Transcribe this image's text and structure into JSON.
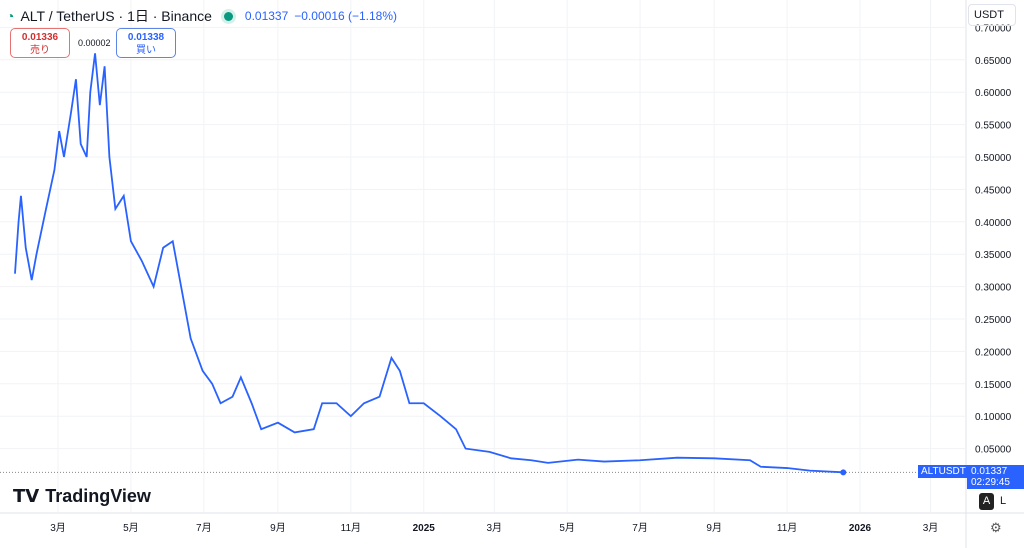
{
  "header": {
    "symbol": "ALT / TetherUS · 1日 · Binance",
    "price": "0.01337",
    "change": "−0.00016 (−1.18%)"
  },
  "trade": {
    "sell_price": "0.01336",
    "sell_label": "売り",
    "spread": "0.00002",
    "buy_price": "0.01338",
    "buy_label": "買い"
  },
  "currency": "USDT",
  "last_price": {
    "symbol": "ALTUSDT",
    "price": "0.01337",
    "countdown": "02:29:45"
  },
  "scale_buttons": {
    "auto": "A",
    "log": "L"
  },
  "logo": "TradingView",
  "colors": {
    "line": "#2962ff"
  },
  "chart_data": {
    "type": "line",
    "ylim": [
      0,
      0.72
    ],
    "xlim": [
      "2024-01-13",
      "2026-04-05"
    ],
    "yticks": [
      "0.05000",
      "0.10000",
      "0.15000",
      "0.20000",
      "0.25000",
      "0.30000",
      "0.35000",
      "0.40000",
      "0.45000",
      "0.50000",
      "0.55000",
      "0.60000",
      "0.65000",
      "0.70000"
    ],
    "xticks": [
      [
        "2024-03-01",
        "3月"
      ],
      [
        "2024-05-01",
        "5月"
      ],
      [
        "2024-07-01",
        "7月"
      ],
      [
        "2024-09-01",
        "9月"
      ],
      [
        "2024-11-01",
        "11月"
      ],
      [
        "2025-01-01",
        "2025"
      ],
      [
        "2025-03-01",
        "3月"
      ],
      [
        "2025-05-01",
        "5月"
      ],
      [
        "2025-07-01",
        "7月"
      ],
      [
        "2025-09-01",
        "9月"
      ],
      [
        "2025-11-01",
        "11月"
      ],
      [
        "2026-01-01",
        "2026"
      ],
      [
        "2026-03-01",
        "3月"
      ]
    ],
    "series": [
      {
        "points": [
          [
            "2024-01-25",
            0.32
          ],
          [
            "2024-01-28",
            0.4
          ],
          [
            "2024-01-30",
            0.44
          ],
          [
            "2024-02-03",
            0.36
          ],
          [
            "2024-02-08",
            0.31
          ],
          [
            "2024-02-12",
            0.35
          ],
          [
            "2024-02-20",
            0.42
          ],
          [
            "2024-02-27",
            0.48
          ],
          [
            "2024-03-02",
            0.54
          ],
          [
            "2024-03-06",
            0.5
          ],
          [
            "2024-03-12",
            0.57
          ],
          [
            "2024-03-16",
            0.62
          ],
          [
            "2024-03-20",
            0.52
          ],
          [
            "2024-03-25",
            0.5
          ],
          [
            "2024-03-28",
            0.6
          ],
          [
            "2024-04-01",
            0.66
          ],
          [
            "2024-04-05",
            0.58
          ],
          [
            "2024-04-09",
            0.64
          ],
          [
            "2024-04-13",
            0.5
          ],
          [
            "2024-04-18",
            0.42
          ],
          [
            "2024-04-25",
            0.44
          ],
          [
            "2024-05-01",
            0.37
          ],
          [
            "2024-05-10",
            0.34
          ],
          [
            "2024-05-20",
            0.3
          ],
          [
            "2024-05-28",
            0.36
          ],
          [
            "2024-06-05",
            0.37
          ],
          [
            "2024-06-12",
            0.3
          ],
          [
            "2024-06-20",
            0.22
          ],
          [
            "2024-06-30",
            0.17
          ],
          [
            "2024-07-08",
            0.15
          ],
          [
            "2024-07-15",
            0.12
          ],
          [
            "2024-07-25",
            0.13
          ],
          [
            "2024-08-01",
            0.16
          ],
          [
            "2024-08-10",
            0.12
          ],
          [
            "2024-08-18",
            0.08
          ],
          [
            "2024-09-01",
            0.09
          ],
          [
            "2024-09-15",
            0.075
          ],
          [
            "2024-10-01",
            0.08
          ],
          [
            "2024-10-08",
            0.12
          ],
          [
            "2024-10-20",
            0.12
          ],
          [
            "2024-11-01",
            0.1
          ],
          [
            "2024-11-12",
            0.12
          ],
          [
            "2024-11-25",
            0.13
          ],
          [
            "2024-12-05",
            0.19
          ],
          [
            "2024-12-12",
            0.17
          ],
          [
            "2024-12-20",
            0.12
          ],
          [
            "2025-01-01",
            0.12
          ],
          [
            "2025-01-15",
            0.1
          ],
          [
            "2025-01-28",
            0.08
          ],
          [
            "2025-02-05",
            0.05
          ],
          [
            "2025-02-25",
            0.045
          ],
          [
            "2025-03-15",
            0.035
          ],
          [
            "2025-04-01",
            0.032
          ],
          [
            "2025-04-15",
            0.028
          ],
          [
            "2025-05-10",
            0.033
          ],
          [
            "2025-06-01",
            0.03
          ],
          [
            "2025-07-01",
            0.032
          ],
          [
            "2025-08-01",
            0.036
          ],
          [
            "2025-09-01",
            0.035
          ],
          [
            "2025-10-01",
            0.032
          ],
          [
            "2025-10-10",
            0.022
          ],
          [
            "2025-11-01",
            0.02
          ],
          [
            "2025-11-20",
            0.016
          ],
          [
            "2025-12-18",
            0.01337
          ]
        ]
      }
    ]
  }
}
